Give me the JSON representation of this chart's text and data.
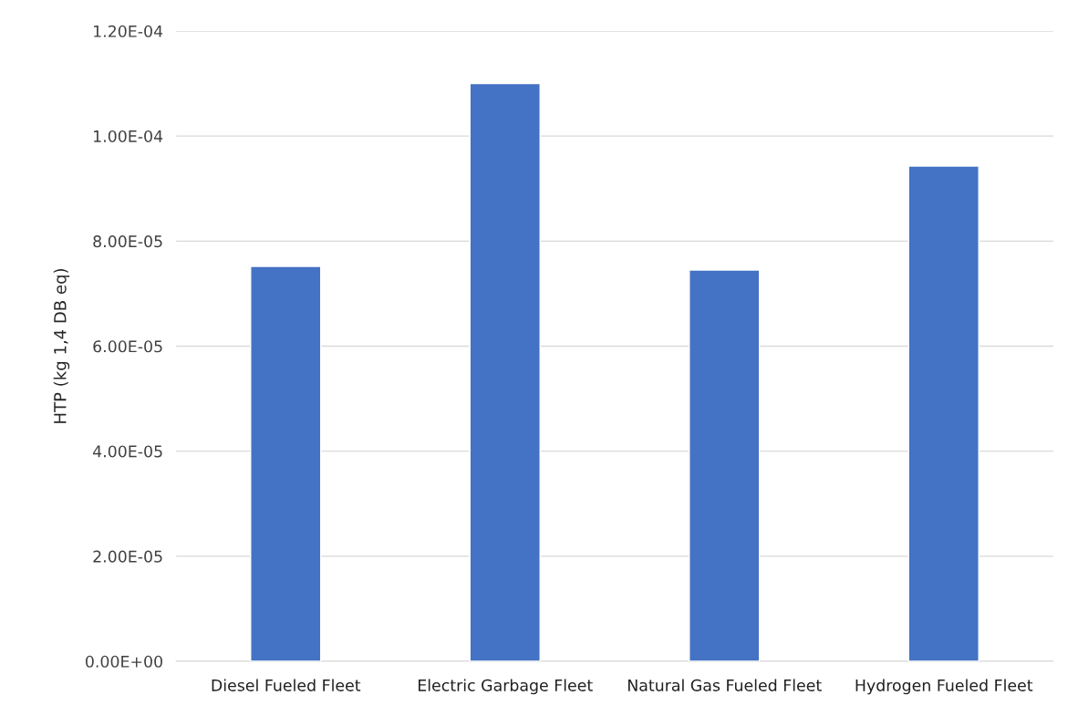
{
  "chart_data": {
    "type": "bar",
    "ylabel": "HTP (kg 1,4 DB eq)",
    "categories": [
      "Diesel Fueled Fleet",
      "Electric Garbage Fleet",
      "Natural Gas Fueled Fleet",
      "Hydrogen Fueled Fleet"
    ],
    "values": [
      7.52e-05,
      0.00011,
      7.45e-05,
      9.43e-05
    ],
    "color": "#4472c4",
    "ylim": [
      0,
      0.00012
    ],
    "yticks": [
      {
        "value": 0,
        "label": "0.00E+00"
      },
      {
        "value": 2e-05,
        "label": "2.00E-05"
      },
      {
        "value": 4e-05,
        "label": "4.00E-05"
      },
      {
        "value": 6e-05,
        "label": "6.00E-05"
      },
      {
        "value": 8e-05,
        "label": "8.00E-05"
      },
      {
        "value": 0.0001,
        "label": "1.00E-04"
      },
      {
        "value": 0.00012,
        "label": "1.20E-04"
      }
    ],
    "grid": "y"
  }
}
